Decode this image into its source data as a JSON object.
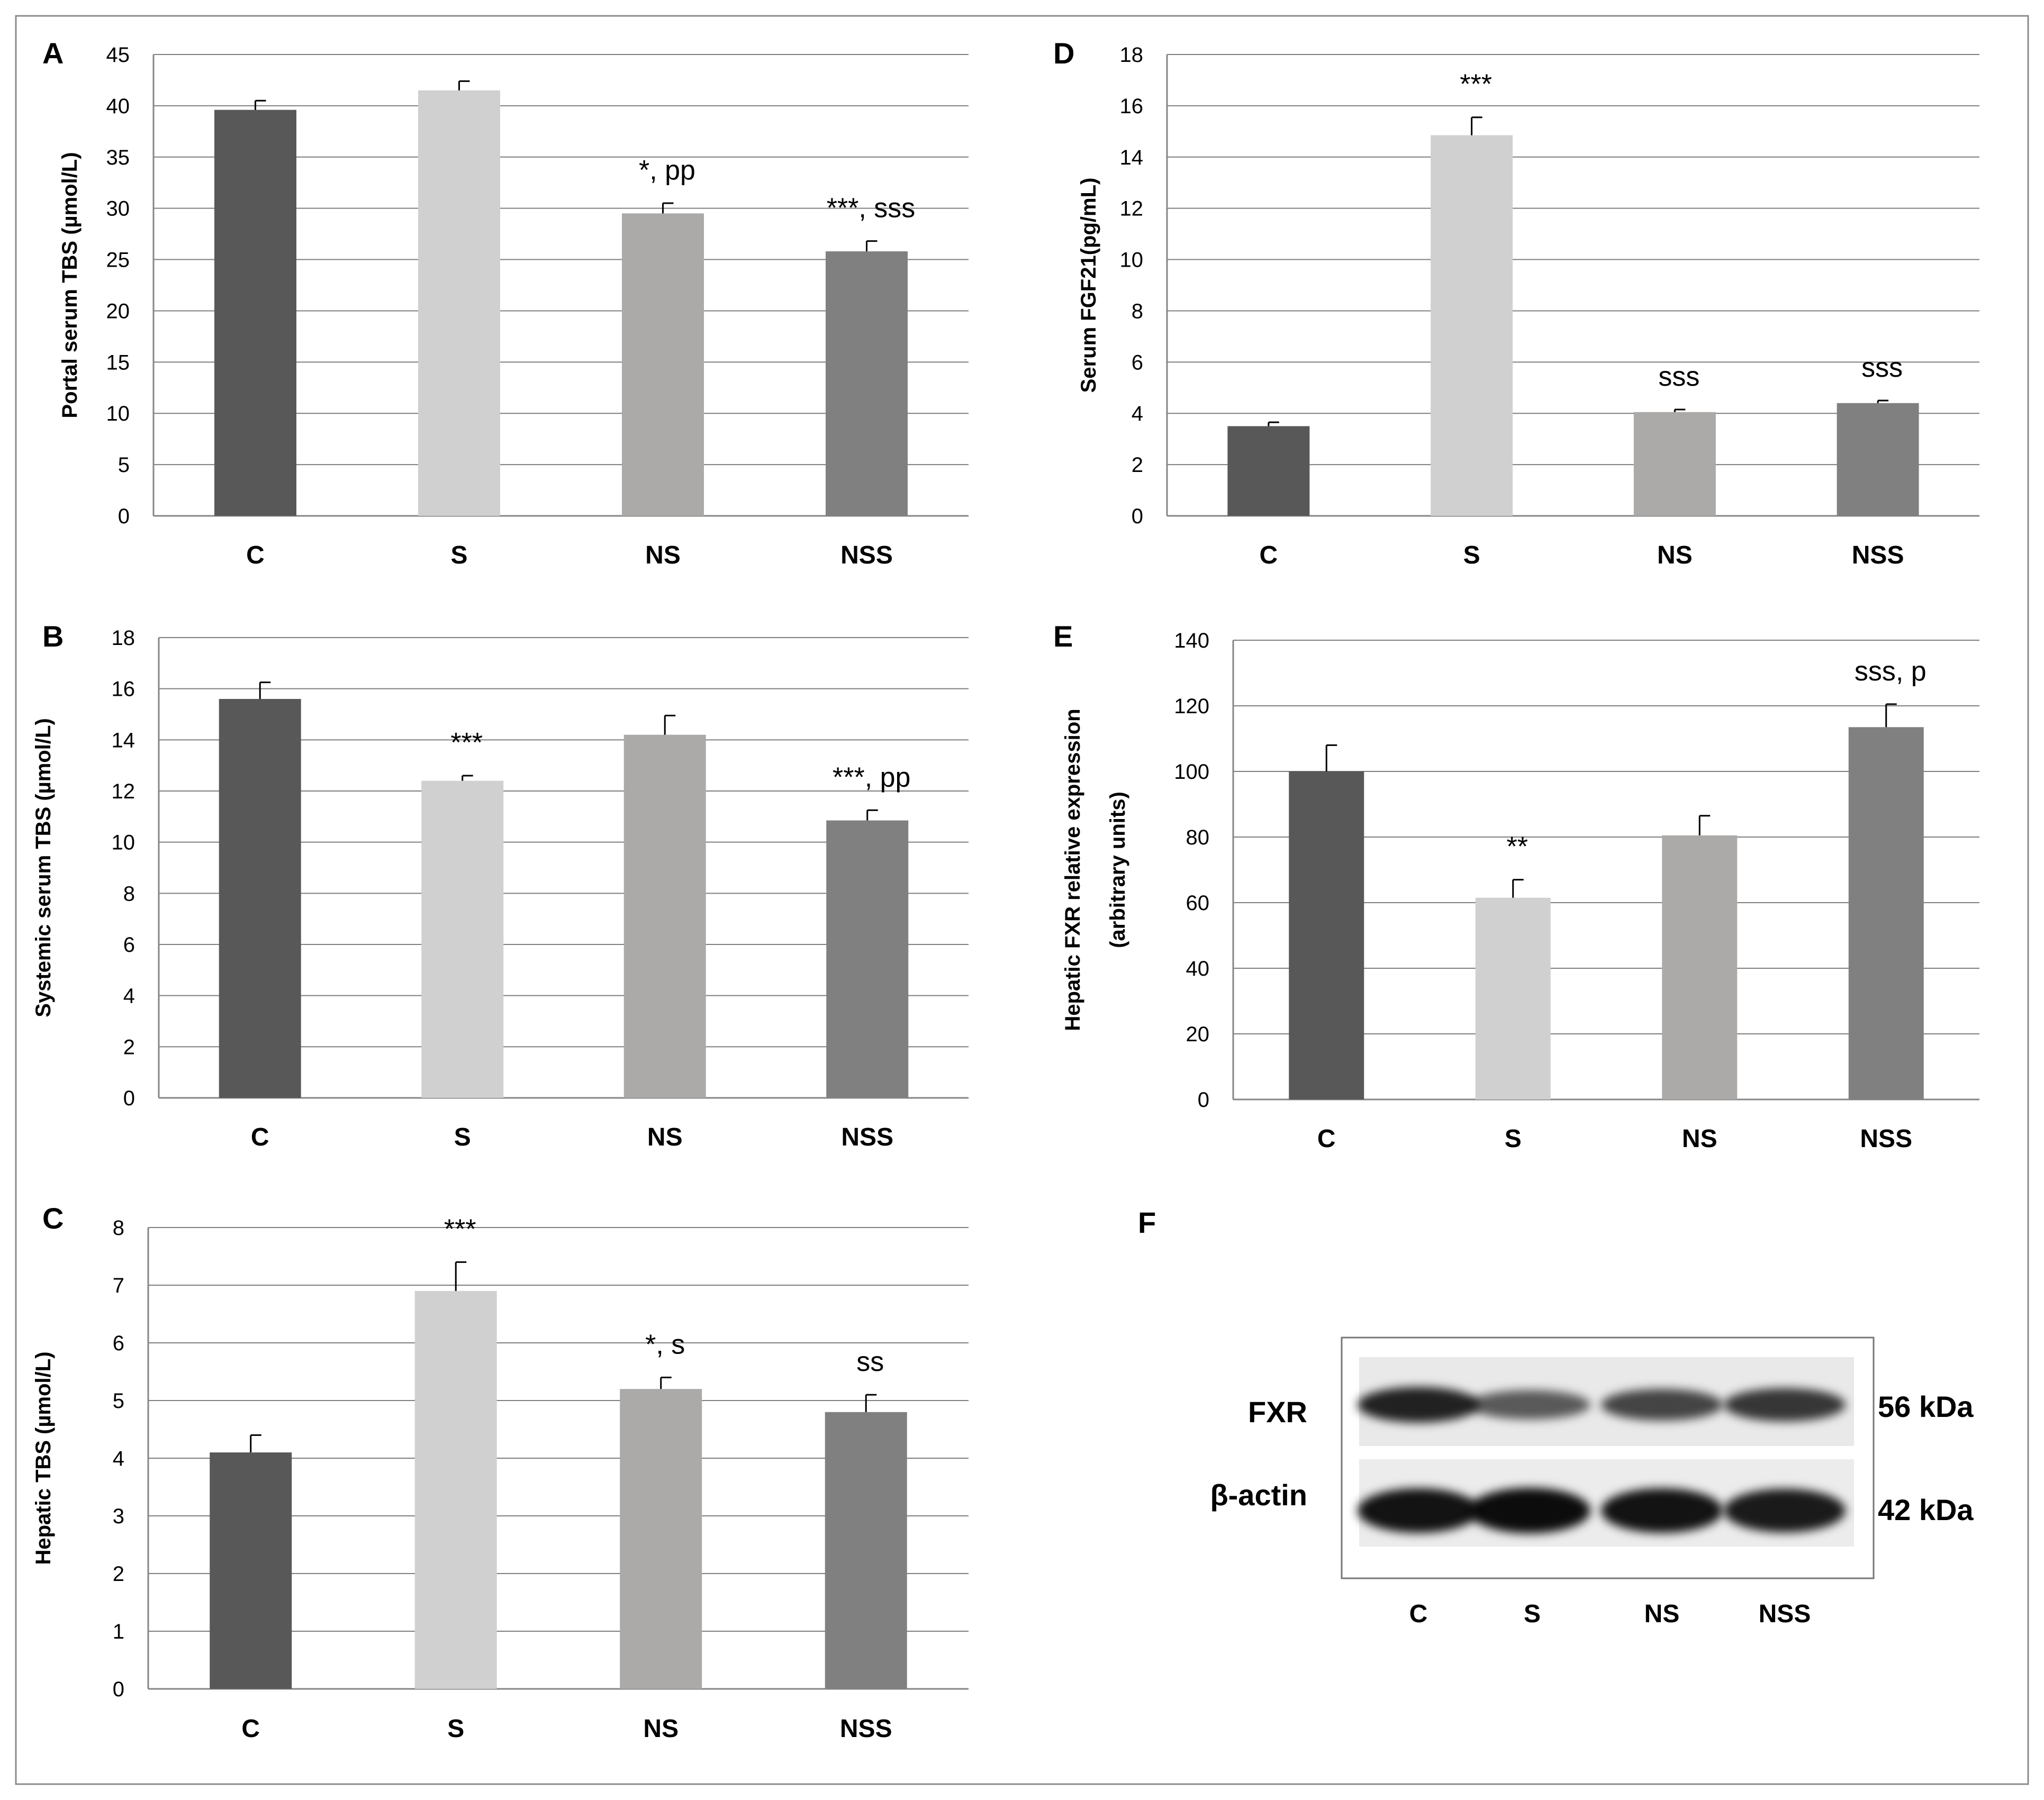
{
  "colors": {
    "frame": "#8c8c8c",
    "grid": "#7f7f7f",
    "bars": [
      "#585858",
      "#d0d0d0",
      "#acaaa8",
      "#808080"
    ],
    "error": "#000000"
  },
  "chart_data": [
    {
      "panel": "A",
      "type": "bar",
      "ylabel": "Portal serum TBS (µmol/L)",
      "categories": [
        "C",
        "S",
        "NS",
        "NSS"
      ],
      "values": [
        39.6,
        41.5,
        29.5,
        25.8
      ],
      "errors": [
        0.9,
        0.9,
        1.0,
        1.0
      ],
      "annotations": [
        "",
        "",
        "*, pp",
        "***, sss"
      ],
      "ylim": [
        0,
        45
      ],
      "yticks": [
        0,
        5,
        10,
        15,
        20,
        25,
        30,
        35,
        40,
        45
      ],
      "grid": true
    },
    {
      "panel": "B",
      "type": "bar",
      "ylabel": "Systemic  serum TBS (µmol/L)",
      "categories": [
        "C",
        "S",
        "NS",
        "NSS"
      ],
      "values": [
        15.6,
        12.4,
        14.2,
        10.85
      ],
      "errors": [
        0.65,
        0.2,
        0.75,
        0.4
      ],
      "annotations": [
        "",
        "***",
        "",
        "***, pp"
      ],
      "ylim": [
        0,
        18
      ],
      "yticks": [
        0,
        2,
        4,
        6,
        8,
        10,
        12,
        14,
        16,
        18
      ],
      "grid": true
    },
    {
      "panel": "C",
      "type": "bar",
      "ylabel": "Hepatic TBS (µmol/L)",
      "categories": [
        "C",
        "S",
        "NS",
        "NSS"
      ],
      "values": [
        4.1,
        6.9,
        5.2,
        4.8
      ],
      "errors": [
        0.3,
        0.5,
        0.2,
        0.3
      ],
      "annotations": [
        "",
        "***",
        "*, s",
        "ss"
      ],
      "ylim": [
        0,
        8
      ],
      "yticks": [
        0,
        1,
        2,
        3,
        4,
        5,
        6,
        7,
        8
      ],
      "grid": true
    },
    {
      "panel": "D",
      "type": "bar",
      "ylabel": "Serum FGF21(pg/mL)",
      "categories": [
        "C",
        "S",
        "NS",
        "NSS"
      ],
      "values": [
        3.5,
        14.85,
        4.05,
        4.4
      ],
      "errors": [
        0.15,
        0.7,
        0.1,
        0.1
      ],
      "annotations": [
        "",
        "***",
        "sss",
        "sss"
      ],
      "ylim": [
        0,
        18
      ],
      "yticks": [
        0,
        2,
        4,
        6,
        8,
        10,
        12,
        14,
        16,
        18
      ],
      "grid": true
    },
    {
      "panel": "E",
      "type": "bar",
      "ylabel": [
        "Hepatic FXR relative expression",
        "(arbitrary units)"
      ],
      "categories": [
        "C",
        "S",
        "NS",
        "NSS"
      ],
      "values": [
        100,
        61.5,
        80.5,
        113.5
      ],
      "errors": [
        8,
        5.5,
        6,
        7
      ],
      "annotations": [
        "",
        "**",
        "",
        "sss, p"
      ],
      "ylim": [
        0,
        140
      ],
      "yticks": [
        0,
        20,
        40,
        60,
        80,
        100,
        120,
        140
      ],
      "grid": true
    }
  ],
  "blot": {
    "panel": "F",
    "rows": [
      {
        "name": "FXR",
        "size": "56 kDa"
      },
      {
        "name": "β-actin",
        "size": "42 kDa"
      }
    ],
    "lanes": [
      "C",
      "S",
      "NS",
      "NSS"
    ],
    "band_intensity": {
      "FXR": [
        0.85,
        0.45,
        0.6,
        0.7
      ],
      "β-actin": [
        0.95,
        1.0,
        0.95,
        0.9
      ]
    }
  }
}
